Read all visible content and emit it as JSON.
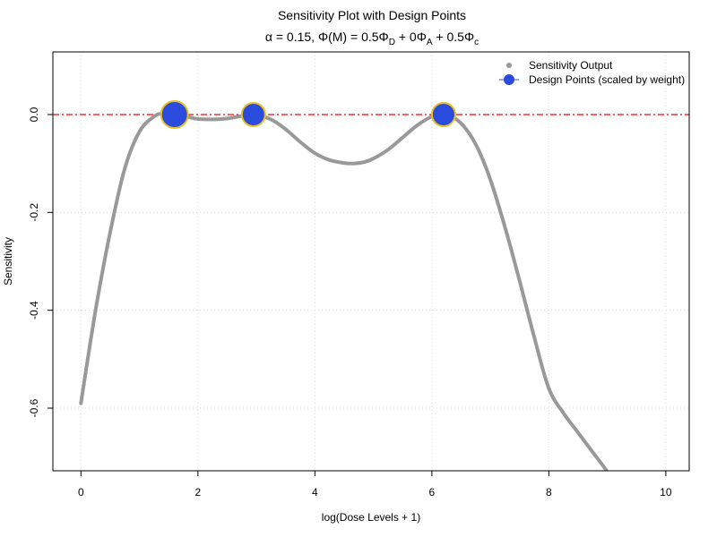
{
  "chart_data": {
    "type": "scatter",
    "title": "Sensitivity Plot with Design Points",
    "subtitle": {
      "alpha_symbol": "α",
      "alpha_text": " = 0.15, ",
      "phi_symbol": "Φ",
      "M_text": "(M)",
      "eq_text": " = 0.5",
      "term1_symbol": "Φ",
      "term1_sub": "D",
      "plus1": " + 0",
      "term2_symbol": "Φ",
      "term2_sub": "A",
      "plus2": " + 0.5",
      "term3_symbol": "Φ",
      "term3_sub": "c"
    },
    "xlabel": "log(Dose Levels + 1)",
    "ylabel": "Sensitivity",
    "xlim": [
      -0.48,
      10.4
    ],
    "ylim": [
      -0.728,
      0.128
    ],
    "xticks": [
      0,
      2,
      4,
      6,
      8,
      10
    ],
    "yticks": [
      0.0,
      -0.2,
      -0.4,
      -0.6
    ],
    "xtick_labels": [
      "0",
      "2",
      "4",
      "6",
      "8",
      "10"
    ],
    "ytick_labels": [
      "0.0",
      "-0.2",
      "-0.4",
      "-0.6"
    ],
    "grid": true,
    "legend_position": "top-right",
    "reference_line": {
      "y": 0,
      "style": "dash-dot",
      "color": "#ff0000"
    },
    "series": [
      {
        "name": "Sensitivity Output",
        "kind": "line-points",
        "color": "#999999",
        "x": [
          0.0,
          0.25,
          0.5,
          0.75,
          1.0,
          1.25,
          1.4,
          1.6,
          1.8,
          2.0,
          2.25,
          2.5,
          2.75,
          2.95,
          3.25,
          3.5,
          3.75,
          4.0,
          4.25,
          4.5,
          4.65,
          4.85,
          5.0,
          5.25,
          5.5,
          5.75,
          6.0,
          6.2,
          6.4,
          6.6,
          6.8,
          7.0,
          7.25,
          7.5,
          7.75,
          8.0,
          8.25,
          8.5,
          8.75,
          9.0,
          9.2
        ],
        "y": [
          -0.59,
          -0.4,
          -0.24,
          -0.11,
          -0.035,
          -0.004,
          0.002,
          0.0,
          -0.004,
          -0.009,
          -0.01,
          -0.008,
          -0.003,
          0.0,
          -0.01,
          -0.03,
          -0.056,
          -0.079,
          -0.093,
          -0.099,
          -0.1,
          -0.097,
          -0.09,
          -0.072,
          -0.047,
          -0.022,
          -0.004,
          0.0,
          -0.008,
          -0.032,
          -0.073,
          -0.133,
          -0.23,
          -0.34,
          -0.455,
          -0.56,
          -0.61,
          -0.65,
          -0.69,
          -0.73,
          -0.77
        ]
      },
      {
        "name": "Design Points (scaled by weight)",
        "kind": "points",
        "color": "#2b4bdd",
        "edge_color": "#e8c020",
        "x": [
          1.6,
          2.95,
          6.2
        ],
        "y": [
          0.0,
          0.0,
          0.0
        ],
        "weight": [
          0.4,
          0.3,
          0.3
        ]
      }
    ]
  }
}
